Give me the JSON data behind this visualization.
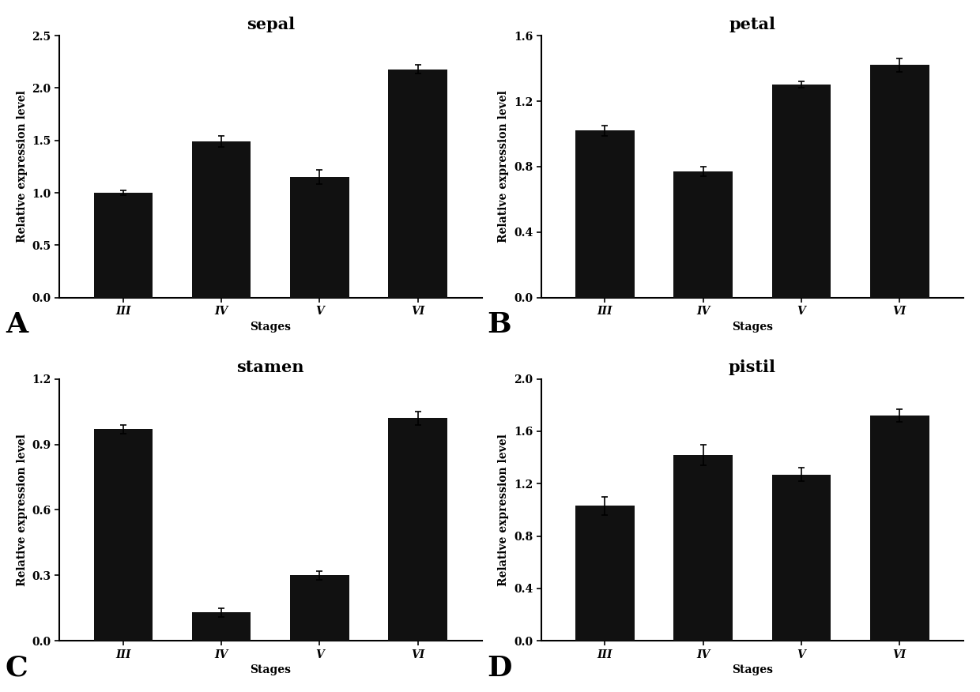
{
  "panels": [
    {
      "title": "sepal",
      "label": "A",
      "categories": [
        "III",
        "IV",
        "V",
        "VI"
      ],
      "values": [
        1.0,
        1.49,
        1.15,
        2.18
      ],
      "errors": [
        0.02,
        0.05,
        0.07,
        0.04
      ],
      "ylim": [
        0.0,
        2.5
      ],
      "yticks": [
        0.0,
        0.5,
        1.0,
        1.5,
        2.0,
        2.5
      ],
      "xlabel": "Stages",
      "ylabel": "Relative expression level"
    },
    {
      "title": "petal",
      "label": "B",
      "categories": [
        "III",
        "IV",
        "V",
        "VI"
      ],
      "values": [
        1.02,
        0.77,
        1.3,
        1.42
      ],
      "errors": [
        0.03,
        0.03,
        0.02,
        0.04
      ],
      "ylim": [
        0.0,
        1.6
      ],
      "yticks": [
        0.0,
        0.4,
        0.8,
        1.2,
        1.6
      ],
      "xlabel": "Stages",
      "ylabel": "Relative expression level"
    },
    {
      "title": "stamen",
      "label": "C",
      "categories": [
        "III",
        "IV",
        "V",
        "VI"
      ],
      "values": [
        0.97,
        0.13,
        0.3,
        1.02
      ],
      "errors": [
        0.02,
        0.02,
        0.02,
        0.03
      ],
      "ylim": [
        0.0,
        1.2
      ],
      "yticks": [
        0.0,
        0.3,
        0.6,
        0.9,
        1.2
      ],
      "xlabel": "Stages",
      "ylabel": "Relative expression level"
    },
    {
      "title": "pistil",
      "label": "D",
      "categories": [
        "III",
        "IV",
        "V",
        "VI"
      ],
      "values": [
        1.03,
        1.42,
        1.27,
        1.72
      ],
      "errors": [
        0.07,
        0.08,
        0.05,
        0.05
      ],
      "ylim": [
        0.0,
        2.0
      ],
      "yticks": [
        0.0,
        0.4,
        0.8,
        1.2,
        1.6,
        2.0
      ],
      "xlabel": "Stages",
      "ylabel": "Relative expression level"
    }
  ],
  "bar_color": "#111111",
  "bar_width": 0.6,
  "bg_color": "#ffffff",
  "title_fontsize": 15,
  "label_fontsize": 26,
  "axis_fontsize": 10,
  "tick_fontsize": 10,
  "ylabel_fontsize": 10
}
